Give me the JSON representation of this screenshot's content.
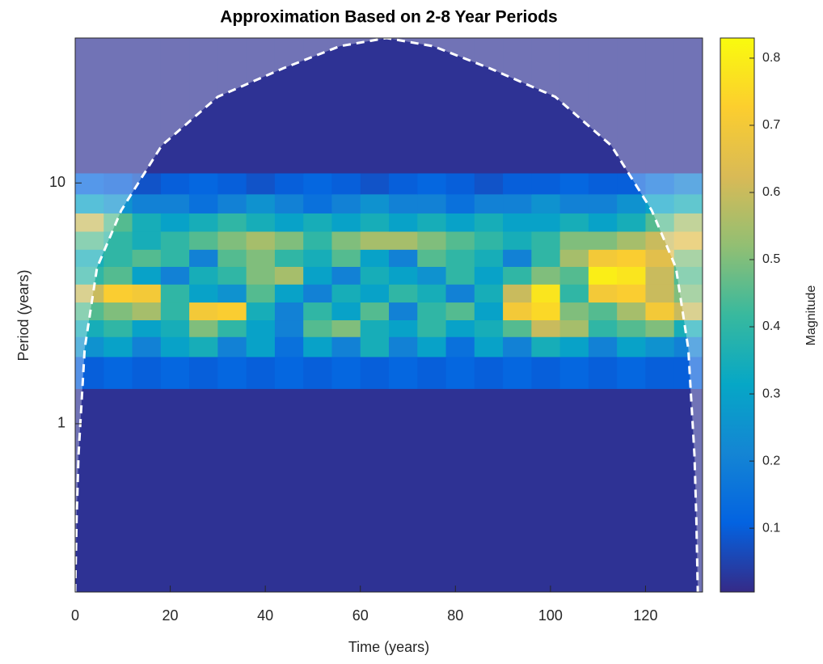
{
  "chart_data": {
    "type": "heatmap",
    "title": "Approximation Based on 2-8 Year Periods",
    "xlabel": "Time (years)",
    "ylabel": "Period (years)",
    "colorbar_label": "Magnitude",
    "x_edges": [
      0,
      6,
      12,
      18,
      24,
      30,
      36,
      42,
      48,
      54,
      60,
      66,
      72,
      78,
      84,
      90,
      96,
      102,
      108,
      114,
      120,
      126,
      132
    ],
    "y_edges": [
      0.2,
      1.4,
      1.9,
      2.3,
      2.7,
      3.2,
      3.8,
      4.5,
      5.3,
      6.3,
      7.5,
      9,
      11,
      40
    ],
    "values": [
      [
        0.02,
        0.02,
        0.02,
        0.02,
        0.02,
        0.02,
        0.02,
        0.02,
        0.02,
        0.02,
        0.02,
        0.02,
        0.02,
        0.02,
        0.02,
        0.02,
        0.02,
        0.02,
        0.02,
        0.02,
        0.02,
        0.02
      ],
      [
        0.1,
        0.12,
        0.1,
        0.12,
        0.1,
        0.12,
        0.1,
        0.12,
        0.1,
        0.12,
        0.1,
        0.12,
        0.1,
        0.12,
        0.1,
        0.12,
        0.1,
        0.12,
        0.1,
        0.12,
        0.1,
        0.1
      ],
      [
        0.25,
        0.3,
        0.2,
        0.3,
        0.35,
        0.2,
        0.3,
        0.15,
        0.3,
        0.2,
        0.35,
        0.2,
        0.3,
        0.15,
        0.3,
        0.2,
        0.35,
        0.3,
        0.2,
        0.3,
        0.25,
        0.2
      ],
      [
        0.35,
        0.4,
        0.3,
        0.35,
        0.5,
        0.4,
        0.3,
        0.2,
        0.45,
        0.5,
        0.35,
        0.3,
        0.4,
        0.3,
        0.35,
        0.45,
        0.6,
        0.55,
        0.4,
        0.45,
        0.5,
        0.35
      ],
      [
        0.45,
        0.5,
        0.55,
        0.4,
        0.7,
        0.72,
        0.35,
        0.2,
        0.4,
        0.3,
        0.45,
        0.2,
        0.4,
        0.45,
        0.3,
        0.7,
        0.75,
        0.5,
        0.45,
        0.55,
        0.7,
        0.6
      ],
      [
        0.6,
        0.72,
        0.7,
        0.4,
        0.3,
        0.25,
        0.45,
        0.3,
        0.2,
        0.35,
        0.3,
        0.4,
        0.35,
        0.2,
        0.35,
        0.6,
        0.78,
        0.4,
        0.7,
        0.72,
        0.6,
        0.5
      ],
      [
        0.4,
        0.45,
        0.3,
        0.2,
        0.35,
        0.4,
        0.5,
        0.55,
        0.3,
        0.2,
        0.35,
        0.3,
        0.25,
        0.4,
        0.3,
        0.4,
        0.5,
        0.45,
        0.8,
        0.78,
        0.6,
        0.45
      ],
      [
        0.35,
        0.4,
        0.45,
        0.4,
        0.2,
        0.45,
        0.5,
        0.4,
        0.35,
        0.45,
        0.3,
        0.2,
        0.45,
        0.4,
        0.35,
        0.2,
        0.4,
        0.55,
        0.7,
        0.72,
        0.65,
        0.5
      ],
      [
        0.45,
        0.4,
        0.35,
        0.4,
        0.45,
        0.5,
        0.55,
        0.5,
        0.4,
        0.5,
        0.55,
        0.55,
        0.5,
        0.45,
        0.4,
        0.35,
        0.4,
        0.5,
        0.5,
        0.55,
        0.6,
        0.65
      ],
      [
        0.6,
        0.45,
        0.35,
        0.3,
        0.35,
        0.4,
        0.35,
        0.3,
        0.35,
        0.3,
        0.35,
        0.3,
        0.35,
        0.3,
        0.35,
        0.3,
        0.3,
        0.35,
        0.3,
        0.35,
        0.45,
        0.55
      ],
      [
        0.3,
        0.25,
        0.2,
        0.2,
        0.15,
        0.2,
        0.25,
        0.2,
        0.15,
        0.2,
        0.25,
        0.2,
        0.2,
        0.15,
        0.2,
        0.2,
        0.25,
        0.2,
        0.2,
        0.25,
        0.3,
        0.35
      ],
      [
        0.12,
        0.1,
        0.08,
        0.1,
        0.12,
        0.1,
        0.08,
        0.1,
        0.12,
        0.1,
        0.08,
        0.1,
        0.12,
        0.1,
        0.08,
        0.1,
        0.1,
        0.12,
        0.1,
        0.1,
        0.15,
        0.2
      ],
      [
        0.02,
        0.02,
        0.02,
        0.02,
        0.02,
        0.02,
        0.02,
        0.02,
        0.02,
        0.02,
        0.02,
        0.02,
        0.02,
        0.02,
        0.02,
        0.02,
        0.02,
        0.02,
        0.02,
        0.02,
        0.02,
        0.02
      ]
    ],
    "xlim": [
      0,
      132
    ],
    "ylim": [
      0.2,
      40
    ],
    "yscale": "log",
    "xticks": [
      0,
      20,
      40,
      60,
      80,
      100,
      120
    ],
    "yticks": [
      1,
      10
    ],
    "clim": [
      0.005,
      0.83
    ],
    "cticks": [
      0.1,
      0.2,
      0.3,
      0.4,
      0.5,
      0.6,
      0.7,
      0.8
    ],
    "colormap": [
      "#352a87",
      "#0363e1",
      "#1485d4",
      "#06a7c6",
      "#38b99e",
      "#92bf73",
      "#d9ba56",
      "#fcce2e",
      "#f9fb0e"
    ],
    "coi": {
      "color": "#ffffff",
      "x": [
        0,
        0.3,
        0.7,
        2,
        4.6,
        9.7,
        18.2,
        30,
        43.7,
        55.7,
        65.5,
        75.3,
        87.3,
        101,
        112.8,
        121.3,
        126.4,
        129,
        130.3,
        130.7,
        131
      ],
      "values": [
        0.2,
        0.4,
        0.74,
        2.05,
        4.45,
        7.7,
        14.3,
        22.8,
        29.9,
        37,
        40,
        37,
        29.9,
        22.8,
        14.3,
        7.7,
        4.45,
        2.05,
        0.74,
        0.4,
        0.2
      ]
    }
  }
}
